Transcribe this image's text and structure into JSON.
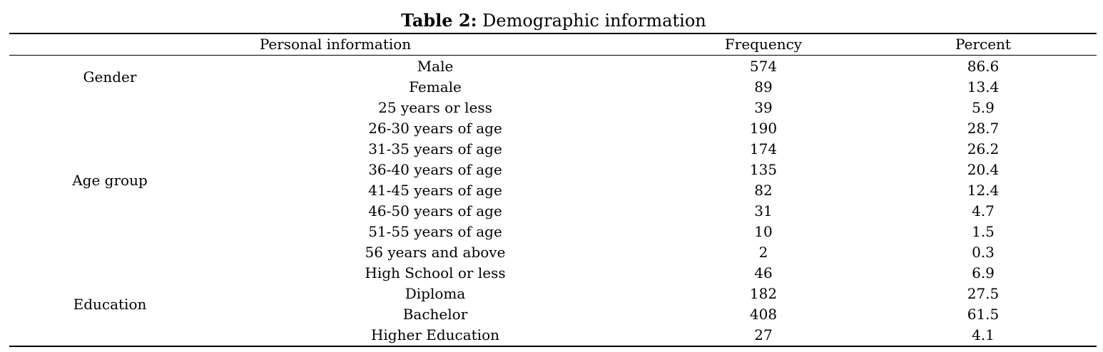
{
  "caption": {
    "label": "Table 2:",
    "title": "Demographic information"
  },
  "headers": {
    "personal": "Personal information",
    "frequency": "Frequency",
    "percent": "Percent"
  },
  "groups": [
    {
      "name": "Gender",
      "start_row": 0,
      "row_count": 2
    },
    {
      "name": "Age group",
      "start_row": 2,
      "row_count": 8
    },
    {
      "name": "Education",
      "start_row": 10,
      "row_count": 4
    }
  ],
  "rows": [
    {
      "item": "Male",
      "frequency": "574",
      "percent": "86.6"
    },
    {
      "item": "Female",
      "frequency": "89",
      "percent": "13.4"
    },
    {
      "item": "25 years or less",
      "frequency": "39",
      "percent": "5.9"
    },
    {
      "item": "26-30 years of age",
      "frequency": "190",
      "percent": "28.7"
    },
    {
      "item": "31-35 years of age",
      "frequency": "174",
      "percent": "26.2"
    },
    {
      "item": "36-40 years of age",
      "frequency": "135",
      "percent": "20.4"
    },
    {
      "item": "41-45 years of age",
      "frequency": "82",
      "percent": "12.4"
    },
    {
      "item": "46-50 years of age",
      "frequency": "31",
      "percent": "4.7"
    },
    {
      "item": "51-55 years of age",
      "frequency": "10",
      "percent": "1.5"
    },
    {
      "item": "56 years and above",
      "frequency": "2",
      "percent": "0.3"
    },
    {
      "item": "High School or less",
      "frequency": "46",
      "percent": "6.9"
    },
    {
      "item": "Diploma",
      "frequency": "182",
      "percent": "27.5"
    },
    {
      "item": "Bachelor",
      "frequency": "408",
      "percent": "61.5"
    },
    {
      "item": "Higher Education",
      "frequency": "27",
      "percent": "4.1"
    }
  ]
}
